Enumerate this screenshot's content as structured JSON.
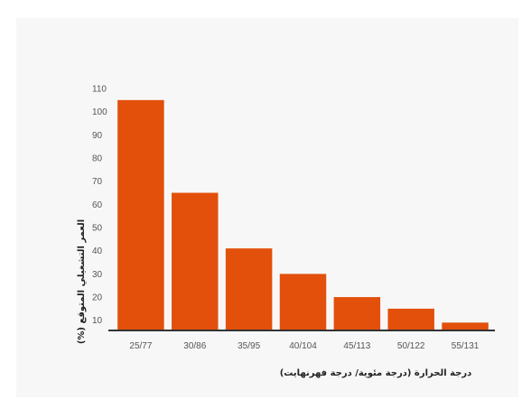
{
  "chart_data": {
    "type": "bar",
    "categories": [
      "25/77",
      "30/86",
      "35/95",
      "40/104",
      "45/113",
      "50/122",
      "55/131"
    ],
    "values": [
      105,
      65,
      41,
      30,
      20,
      15,
      9
    ],
    "xlabel": "درجة الحرارة (درجة مئوية/ درجة فهرنهايت)",
    "ylabel": "(%) العمر التشغيلي المتوقع",
    "ylim": [
      6,
      110
    ],
    "yticks": [
      10,
      20,
      30,
      40,
      50,
      60,
      70,
      80,
      90,
      100,
      110
    ],
    "grid": false,
    "bar_color": "#e2500b",
    "axis_color": "#333333"
  }
}
